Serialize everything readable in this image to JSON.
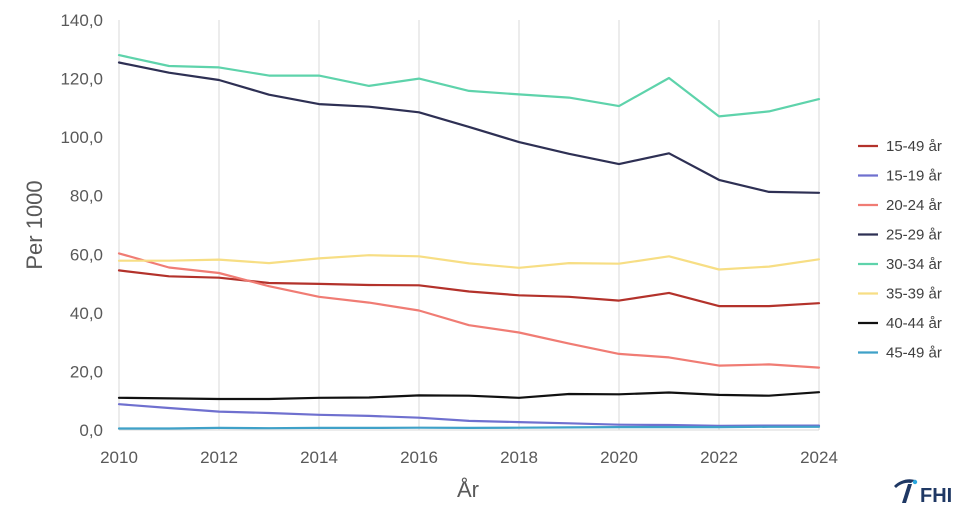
{
  "chart_data": {
    "type": "line",
    "title": "",
    "xlabel": "År",
    "ylabel": "Per 1000",
    "xlim": [
      2010,
      2024
    ],
    "ylim": [
      0,
      140
    ],
    "x_ticks": [
      "2010",
      "2012",
      "2014",
      "2016",
      "2018",
      "2020",
      "2022",
      "2024"
    ],
    "y_ticks": [
      "0,0",
      "20,0",
      "40,0",
      "60,0",
      "80,0",
      "100,0",
      "120,0",
      "140,0"
    ],
    "grid": "vertical",
    "legend_position": "right",
    "x": [
      2010,
      2011,
      2012,
      2013,
      2014,
      2015,
      2016,
      2017,
      2018,
      2019,
      2020,
      2021,
      2022,
      2023,
      2024
    ],
    "series": [
      {
        "name": "15-49 år",
        "color": "#b3322b",
        "values": [
          54.5,
          52.5,
          52.0,
          50.2,
          49.9,
          49.5,
          49.4,
          47.3,
          46.0,
          45.5,
          44.2,
          46.8,
          42.3,
          42.3,
          43.3
        ]
      },
      {
        "name": "15-19 år",
        "color": "#6f70cf",
        "values": [
          8.8,
          7.5,
          6.3,
          5.8,
          5.2,
          4.8,
          4.2,
          3.1,
          2.7,
          2.3,
          1.8,
          1.7,
          1.4,
          1.5,
          1.5
        ]
      },
      {
        "name": "20-24 år",
        "color": "#f07c74",
        "values": [
          60.3,
          55.5,
          53.6,
          49.1,
          45.5,
          43.5,
          40.8,
          35.8,
          33.3,
          29.5,
          26.0,
          24.8,
          22.0,
          22.4,
          21.3
        ]
      },
      {
        "name": "25-29 år",
        "color": "#2e3054",
        "values": [
          125.5,
          122.0,
          119.5,
          114.5,
          111.3,
          110.4,
          108.5,
          103.5,
          98.3,
          94.3,
          90.8,
          94.5,
          85.4,
          81.3,
          81.0
        ]
      },
      {
        "name": "30-34 år",
        "color": "#5ed3ab",
        "values": [
          128.0,
          124.3,
          123.8,
          121.0,
          121.0,
          117.5,
          120.0,
          115.8,
          114.6,
          113.5,
          110.6,
          120.2,
          107.1,
          108.8,
          113.0
        ]
      },
      {
        "name": "35-39 år",
        "color": "#f7de84",
        "values": [
          57.8,
          57.8,
          58.2,
          57.0,
          58.6,
          59.7,
          59.3,
          56.9,
          55.4,
          57.0,
          56.8,
          59.3,
          54.8,
          55.8,
          58.3
        ]
      },
      {
        "name": "40-44 år",
        "color": "#111111",
        "values": [
          11.0,
          10.8,
          10.6,
          10.6,
          11.0,
          11.1,
          11.8,
          11.7,
          11.0,
          12.3,
          12.2,
          12.8,
          12.0,
          11.7,
          12.9
        ]
      },
      {
        "name": "45-49 år",
        "color": "#3fa1c8",
        "values": [
          0.5,
          0.5,
          0.7,
          0.6,
          0.7,
          0.7,
          0.8,
          0.7,
          0.8,
          0.9,
          1.0,
          1.0,
          1.0,
          1.1,
          1.1
        ]
      }
    ]
  },
  "logo": {
    "text": "FHI"
  }
}
